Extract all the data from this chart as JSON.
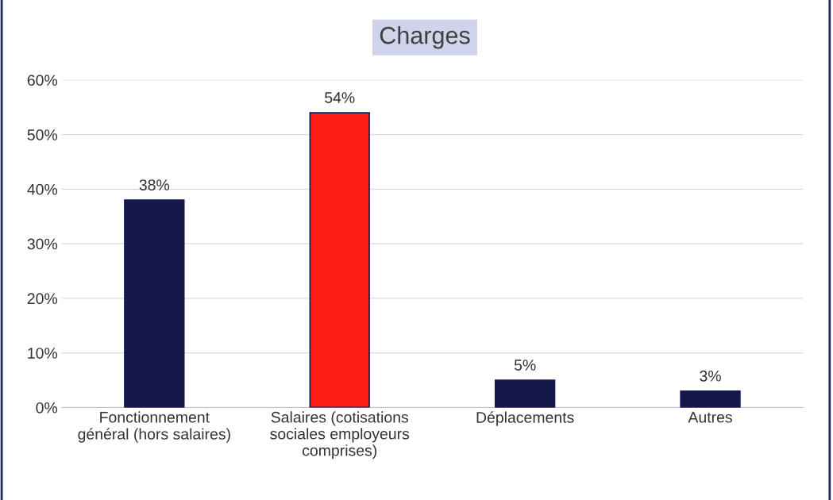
{
  "chart_data": {
    "type": "bar",
    "title": "Charges",
    "categories": [
      "Fonctionnement\ngénéral (hors salaires)",
      "Salaires (cotisations\nsociales employeurs\ncomprises)",
      "Déplacements",
      "Autres"
    ],
    "values": [
      38,
      54,
      5,
      3
    ],
    "colors": [
      "#14184a",
      "#ff1e14",
      "#14184a",
      "#14184a"
    ],
    "value_labels": [
      "38%",
      "54%",
      "5%",
      "3%"
    ],
    "ylim": [
      0,
      60
    ],
    "yticks": [
      {
        "value": 0,
        "label": "0%"
      },
      {
        "value": 10,
        "label": "10%"
      },
      {
        "value": 20,
        "label": "20%"
      },
      {
        "value": 30,
        "label": "30%"
      },
      {
        "value": 40,
        "label": "40%"
      },
      {
        "value": 50,
        "label": "50%"
      },
      {
        "value": 60,
        "label": "60%"
      }
    ],
    "grid": "y",
    "legend": false
  }
}
